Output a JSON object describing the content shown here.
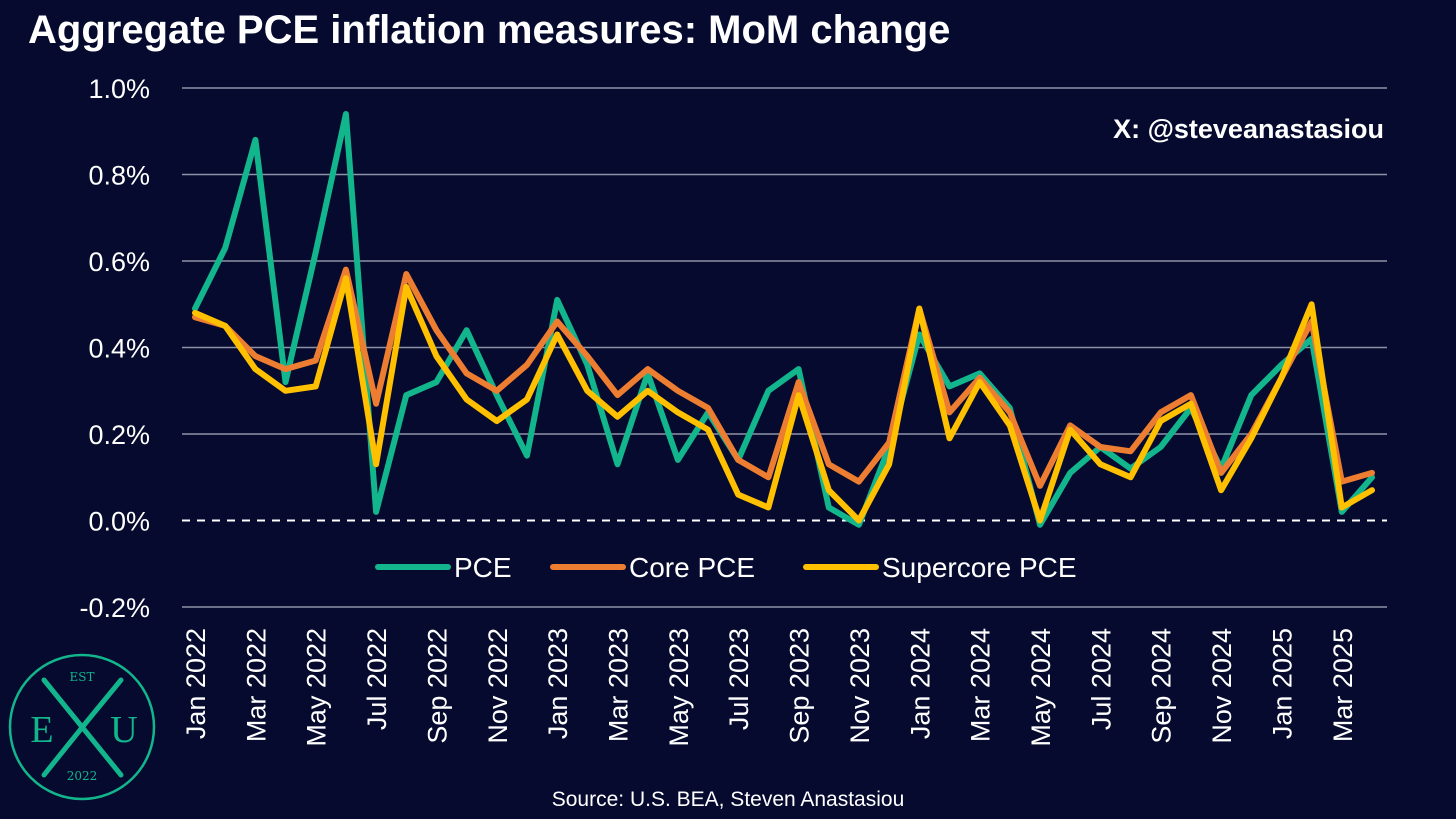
{
  "chart_data": {
    "type": "line",
    "title": "Aggregate PCE inflation measures: MoM change",
    "watermark": "X: @steveanastasiou",
    "source": "Source: U.S. BEA, Steven Anastasiou",
    "ylim": [
      -0.2,
      1.0
    ],
    "yticks": [
      1.0,
      0.8,
      0.6,
      0.4,
      0.2,
      0.0,
      -0.2
    ],
    "ytick_labels": [
      "1.0%",
      "0.8%",
      "0.6%",
      "0.4%",
      "0.2%",
      "0.0%",
      "-0.2%"
    ],
    "zero_line": "dashed",
    "grid": true,
    "legend_position": "inside-bottom",
    "x": [
      "Jan 2022",
      "Feb 2022",
      "Mar 2022",
      "Apr 2022",
      "May 2022",
      "Jun 2022",
      "Jul 2022",
      "Aug 2022",
      "Sep 2022",
      "Oct 2022",
      "Nov 2022",
      "Dec 2022",
      "Jan 2023",
      "Feb 2023",
      "Mar 2023",
      "Apr 2023",
      "May 2023",
      "Jun 2023",
      "Jul 2023",
      "Aug 2023",
      "Sep 2023",
      "Oct 2023",
      "Nov 2023",
      "Dec 2023",
      "Jan 2024",
      "Feb 2024",
      "Mar 2024",
      "Apr 2024",
      "May 2024",
      "Jun 2024",
      "Jul 2024",
      "Aug 2024",
      "Sep 2024",
      "Oct 2024",
      "Nov 2024",
      "Dec 2024",
      "Jan 2025",
      "Feb 2025",
      "Mar 2025",
      "Apr 2025"
    ],
    "xtick_labels": [
      "Jan 2022",
      "Mar 2022",
      "May 2022",
      "Jul 2022",
      "Sep 2022",
      "Nov 2022",
      "Jan 2023",
      "Mar 2023",
      "May 2023",
      "Jul 2023",
      "Sep 2023",
      "Nov 2023",
      "Jan 2024",
      "Mar 2024",
      "May 2024",
      "Jul 2024",
      "Sep 2024",
      "Nov 2024",
      "Jan 2025",
      "Mar 2025"
    ],
    "xtick_step": 2,
    "series": [
      {
        "name": "PCE",
        "color": "#13b58c",
        "values": [
          0.49,
          0.63,
          0.88,
          0.32,
          0.62,
          0.94,
          0.02,
          0.29,
          0.32,
          0.44,
          0.29,
          0.15,
          0.51,
          0.36,
          0.13,
          0.34,
          0.14,
          0.25,
          0.14,
          0.3,
          0.35,
          0.03,
          -0.01,
          0.17,
          0.43,
          0.31,
          0.34,
          0.26,
          -0.01,
          0.11,
          0.17,
          0.12,
          0.17,
          0.26,
          0.12,
          0.29,
          0.36,
          0.42,
          0.02,
          0.1
        ]
      },
      {
        "name": "Core PCE",
        "color": "#ed7d31",
        "values": [
          0.47,
          0.45,
          0.38,
          0.35,
          0.37,
          0.58,
          0.27,
          0.57,
          0.44,
          0.34,
          0.3,
          0.36,
          0.46,
          0.38,
          0.29,
          0.35,
          0.3,
          0.26,
          0.14,
          0.1,
          0.32,
          0.13,
          0.09,
          0.18,
          0.49,
          0.25,
          0.33,
          0.25,
          0.08,
          0.22,
          0.17,
          0.16,
          0.25,
          0.29,
          0.11,
          0.2,
          0.33,
          0.46,
          0.09,
          0.11
        ]
      },
      {
        "name": "Supercore PCE",
        "color": "#ffc000",
        "values": [
          0.48,
          0.45,
          0.35,
          0.3,
          0.31,
          0.56,
          0.13,
          0.54,
          0.38,
          0.28,
          0.23,
          0.28,
          0.43,
          0.3,
          0.24,
          0.3,
          0.25,
          0.21,
          0.06,
          0.03,
          0.29,
          0.07,
          0.0,
          0.13,
          0.49,
          0.19,
          0.32,
          0.22,
          0.0,
          0.21,
          0.13,
          0.1,
          0.23,
          0.27,
          0.07,
          0.19,
          0.33,
          0.5,
          0.03,
          0.07
        ]
      }
    ]
  },
  "logo": {
    "top_text": "EST",
    "left_letter": "E",
    "right_letter": "U",
    "bottom_text": "2022",
    "color": "#13b58c"
  }
}
